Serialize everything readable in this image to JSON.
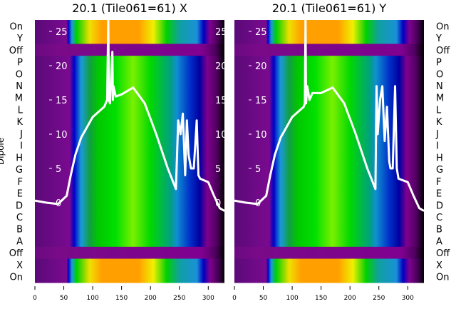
{
  "chart_data": [
    {
      "type": "heatmap",
      "title": "20.1 (Tile061=61) X",
      "ylabel": "Dipole",
      "row_labels": [
        "On",
        "Y",
        "Off",
        "P",
        "O",
        "N",
        "M",
        "L",
        "K",
        "J",
        "I",
        "H",
        "G",
        "F",
        "E",
        "D",
        "C",
        "B",
        "A",
        "Off",
        "X",
        "On"
      ],
      "row_kinds": [
        "on",
        "on",
        "off",
        "dip",
        "dip",
        "dip",
        "dip",
        "dip",
        "dip",
        "dip",
        "dip",
        "dip",
        "dip",
        "dip",
        "dip",
        "dip",
        "dip",
        "dip",
        "dip",
        "off",
        "on",
        "on"
      ],
      "xlim": [
        0,
        328
      ],
      "xticks": [
        0,
        50,
        100,
        150,
        200,
        250,
        300
      ],
      "overlay": {
        "type": "line",
        "ylim": [
          -1.3,
          27
        ],
        "yticks": [
          0,
          5,
          10,
          15,
          20,
          25
        ],
        "x": [
          0,
          20,
          40,
          55,
          62,
          70,
          80,
          100,
          120,
          125,
          127,
          128,
          130,
          134,
          135,
          136,
          140,
          150,
          170,
          190,
          210,
          230,
          244,
          248,
          252,
          256,
          260,
          263,
          266,
          270,
          275,
          280,
          283,
          286,
          300,
          310,
          320,
          328
        ],
        "y": [
          0.3,
          0,
          -0.2,
          1,
          4,
          7,
          9.5,
          12.5,
          14,
          15,
          27,
          15,
          14.5,
          22,
          15,
          17,
          15.5,
          15.8,
          16.8,
          14.5,
          10,
          5,
          2,
          12,
          10,
          13,
          4,
          12,
          7,
          5,
          5,
          12,
          4,
          3.5,
          3,
          1,
          -0.8,
          -1.2
        ]
      }
    },
    {
      "type": "heatmap",
      "title": "20.1 (Tile061=61) Y",
      "row_labels": [
        "On",
        "Y",
        "Off",
        "P",
        "O",
        "N",
        "M",
        "L",
        "K",
        "J",
        "I",
        "H",
        "G",
        "F",
        "E",
        "D",
        "C",
        "B",
        "A",
        "Off",
        "X",
        "On"
      ],
      "row_kinds": [
        "on",
        "on",
        "off",
        "dip",
        "dip",
        "dip",
        "dip",
        "dip",
        "dip",
        "dip",
        "dip",
        "dip",
        "dip",
        "dip",
        "dip",
        "dip",
        "dip",
        "dip",
        "dip",
        "off",
        "on",
        "on"
      ],
      "xlim": [
        0,
        328
      ],
      "xticks": [
        0,
        50,
        100,
        150,
        200,
        250,
        300
      ],
      "overlay": {
        "type": "line",
        "ylim": [
          -1.3,
          27
        ],
        "yticks": [
          0,
          5,
          10,
          15,
          20,
          25
        ],
        "x": [
          0,
          20,
          40,
          55,
          62,
          70,
          80,
          100,
          120,
          122,
          123,
          124,
          126,
          130,
          135,
          150,
          170,
          190,
          210,
          230,
          244,
          246,
          248,
          252,
          256,
          260,
          264,
          268,
          270,
          274,
          278,
          281,
          284,
          300,
          310,
          320,
          328
        ],
        "y": [
          0.3,
          0,
          -0.2,
          1,
          4,
          7,
          9.5,
          12.5,
          14,
          14.5,
          27,
          14.5,
          17,
          15,
          16,
          16,
          16.8,
          14.5,
          10,
          5,
          2,
          17,
          10,
          15,
          17,
          9,
          14,
          6,
          5,
          5,
          17,
          5,
          3.5,
          3,
          1,
          -0.8,
          -1.2
        ]
      }
    }
  ]
}
